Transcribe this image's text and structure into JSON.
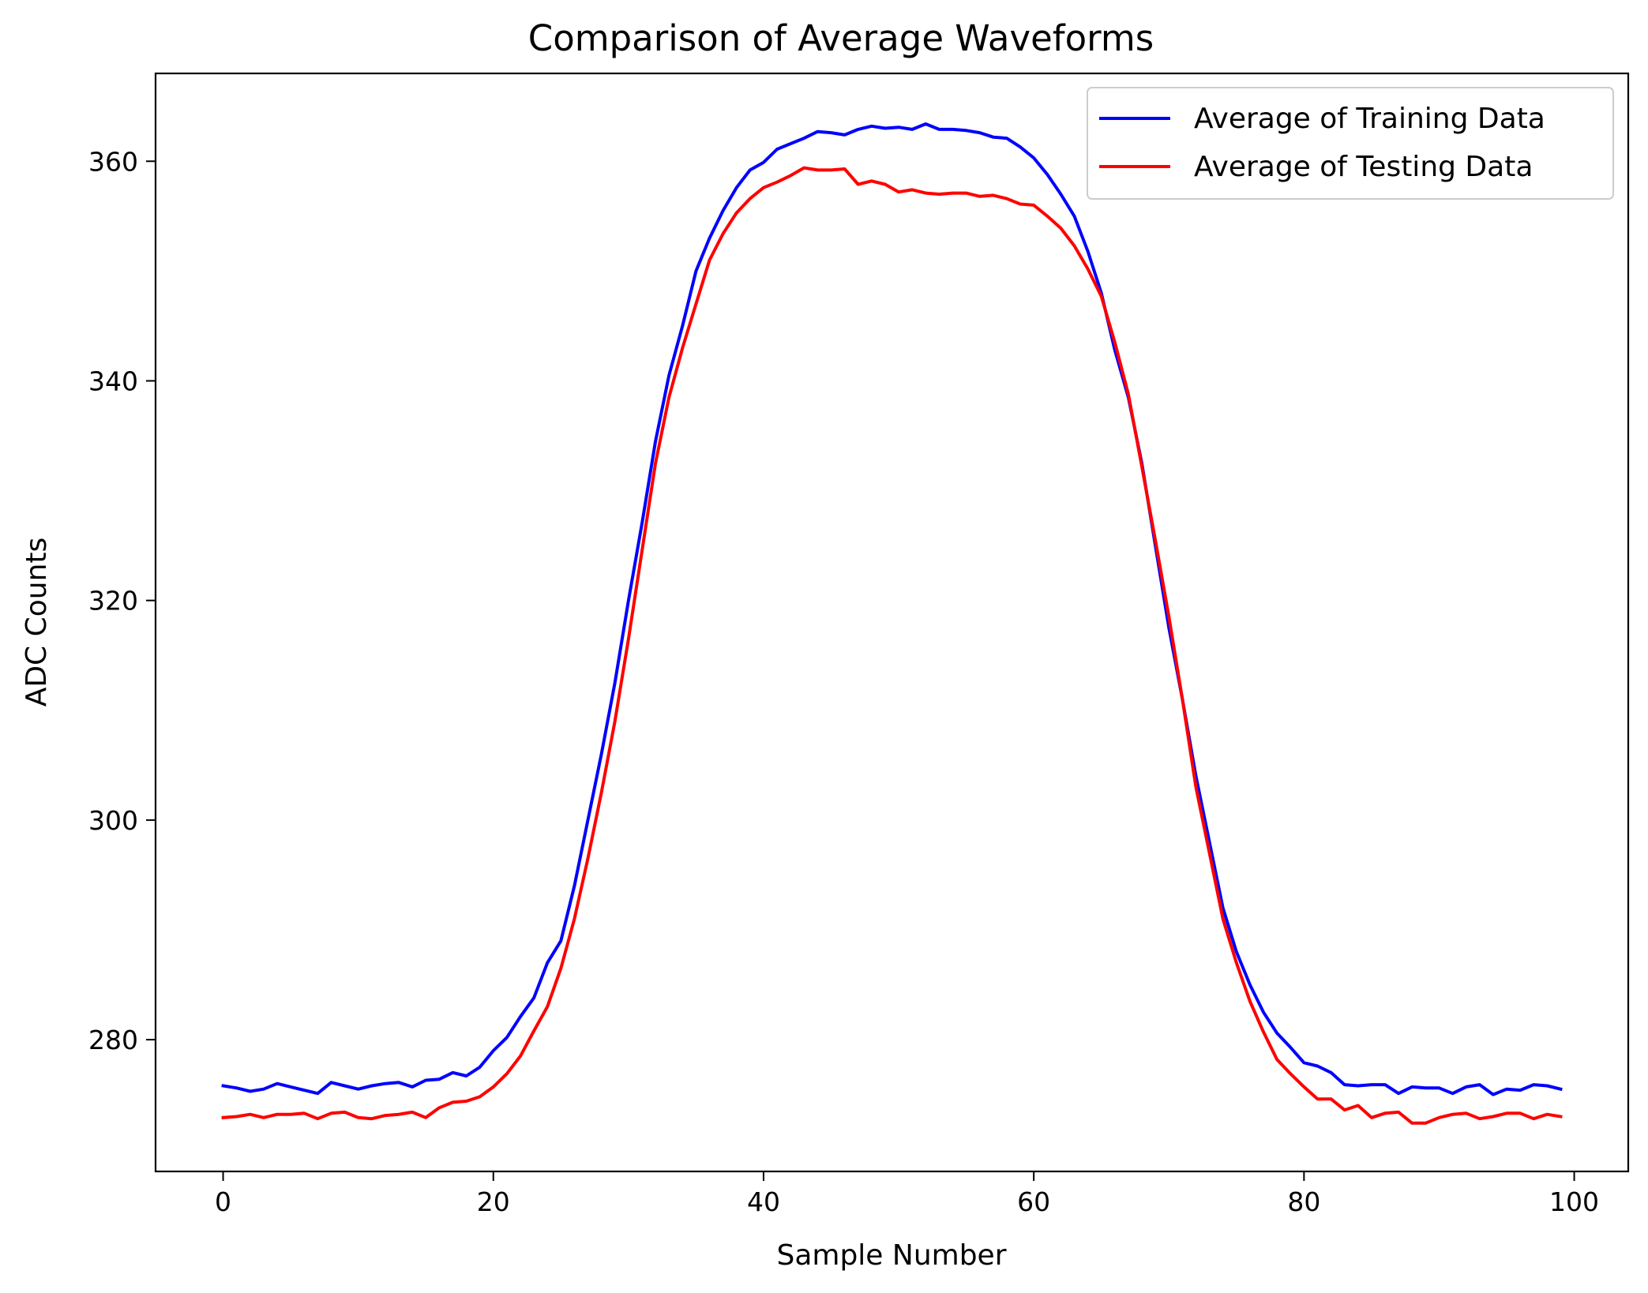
{
  "chart_data": {
    "type": "line",
    "title": "Comparison of Average Waveforms",
    "xlabel": "Sample Number",
    "ylabel": "ADC Counts",
    "xlim": [
      -5,
      104
    ],
    "ylim": [
      268,
      368
    ],
    "xticks": [
      0,
      20,
      40,
      60,
      80,
      100
    ],
    "yticks": [
      280,
      300,
      320,
      340,
      360
    ],
    "grid": false,
    "legend_position": "top-right",
    "x": [
      0,
      1,
      2,
      3,
      4,
      5,
      6,
      7,
      8,
      9,
      10,
      11,
      12,
      13,
      14,
      15,
      16,
      17,
      18,
      19,
      20,
      21,
      22,
      23,
      24,
      25,
      26,
      27,
      28,
      29,
      30,
      31,
      32,
      33,
      34,
      35,
      36,
      37,
      38,
      39,
      40,
      41,
      42,
      43,
      44,
      45,
      46,
      47,
      48,
      49,
      50,
      51,
      52,
      53,
      54,
      55,
      56,
      57,
      58,
      59,
      60,
      61,
      62,
      63,
      64,
      65,
      66,
      67,
      68,
      69,
      70,
      71,
      72,
      73,
      74,
      75,
      76,
      77,
      78,
      79,
      80,
      81,
      82,
      83,
      84,
      85,
      86,
      87,
      88,
      89,
      90,
      91,
      92,
      93,
      94,
      95,
      96,
      97,
      98,
      99
    ],
    "series": [
      {
        "name": "Average of Training Data",
        "color": "#0000ff",
        "values": [
          275.8,
          275.6,
          275.3,
          275.5,
          276.0,
          275.7,
          275.4,
          275.1,
          276.1,
          275.8,
          275.5,
          275.8,
          276.0,
          276.1,
          275.7,
          276.3,
          276.4,
          277.0,
          276.7,
          277.5,
          279.0,
          280.2,
          282.1,
          283.8,
          287.0,
          289.0,
          294.0,
          300.0,
          306.0,
          312.5,
          320.0,
          327.0,
          334.5,
          340.5,
          345.0,
          350.0,
          353.0,
          355.5,
          357.6,
          359.2,
          359.9,
          361.1,
          361.6,
          362.1,
          362.7,
          362.6,
          362.4,
          362.9,
          363.2,
          363.0,
          363.1,
          362.9,
          363.4,
          362.9,
          362.9,
          362.8,
          362.6,
          362.2,
          362.1,
          361.3,
          360.3,
          358.8,
          357.0,
          355.0,
          351.8,
          348.0,
          342.8,
          338.5,
          332.5,
          325.0,
          317.5,
          311.0,
          304.0,
          298.0,
          292.0,
          288.0,
          285.0,
          282.5,
          280.6,
          279.3,
          277.9,
          277.6,
          277.0,
          275.9,
          275.8,
          275.9,
          275.9,
          275.1,
          275.7,
          275.6,
          275.6,
          275.1,
          275.7,
          275.9,
          275.0,
          275.5,
          275.4,
          275.9,
          275.8,
          275.5
        ]
      },
      {
        "name": "Average of Testing Data",
        "color": "#ff0000",
        "values": [
          272.9,
          273.0,
          273.2,
          272.9,
          273.2,
          273.2,
          273.3,
          272.8,
          273.3,
          273.4,
          272.9,
          272.8,
          273.1,
          273.2,
          273.4,
          272.9,
          273.8,
          274.3,
          274.4,
          274.8,
          275.7,
          276.9,
          278.5,
          280.8,
          283.0,
          286.5,
          291.0,
          296.5,
          302.5,
          309.0,
          316.5,
          324.5,
          332.5,
          338.5,
          343.0,
          347.0,
          351.0,
          353.4,
          355.3,
          356.6,
          357.6,
          358.1,
          358.7,
          359.4,
          359.2,
          359.2,
          359.3,
          357.9,
          358.2,
          357.9,
          357.2,
          357.4,
          357.1,
          357.0,
          357.1,
          357.1,
          356.8,
          356.9,
          356.6,
          356.1,
          356.0,
          355.0,
          353.9,
          352.3,
          350.2,
          347.7,
          343.5,
          338.8,
          332.2,
          325.5,
          318.5,
          311.0,
          303.0,
          297.0,
          291.0,
          287.0,
          283.5,
          280.7,
          278.2,
          276.9,
          275.7,
          274.6,
          274.6,
          273.6,
          274.0,
          272.9,
          273.3,
          273.4,
          272.4,
          272.4,
          272.9,
          273.2,
          273.3,
          272.8,
          273.0,
          273.3,
          273.3,
          272.8,
          273.2,
          273.0
        ]
      }
    ]
  }
}
